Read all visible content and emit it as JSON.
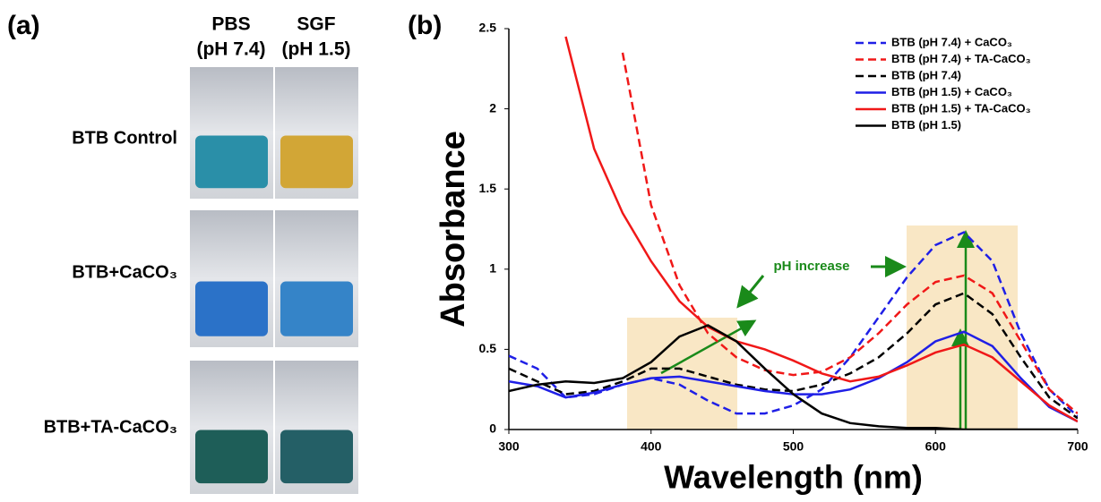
{
  "panel_a": {
    "label": "(a)",
    "columns": [
      {
        "name": "PBS",
        "condition": "(pH 7.4)"
      },
      {
        "name": "SGF",
        "condition": "(pH 1.5)"
      }
    ],
    "rows": [
      "BTB Control",
      "BTB+CaCO₃",
      "BTB+TA-CaCO₃"
    ]
  },
  "chart_data": {
    "type": "line",
    "panel_label": "(b)",
    "x_label": "Wavelength (nm)",
    "y_label": "Absorbance",
    "annotation": "pH increase",
    "x": [
      300,
      320,
      340,
      360,
      380,
      400,
      420,
      440,
      460,
      480,
      500,
      520,
      540,
      560,
      580,
      600,
      620,
      640,
      660,
      680,
      700
    ],
    "xlim": [
      300,
      700
    ],
    "xticks": [
      300,
      400,
      500,
      600,
      700
    ],
    "ylim": [
      0,
      2.5
    ],
    "yticks": [
      0,
      0.5,
      1,
      1.5,
      2,
      2.5
    ],
    "legend": "upper right",
    "series": [
      {
        "name": "BTB (pH 7.4) + CaCO₃",
        "color": "#1f1fe6",
        "dashed": true,
        "values": [
          0.46,
          0.38,
          0.2,
          0.22,
          0.28,
          0.32,
          0.28,
          0.18,
          0.1,
          0.1,
          0.15,
          0.25,
          0.45,
          0.7,
          0.95,
          1.15,
          1.23,
          1.05,
          0.6,
          0.25,
          0.08
        ]
      },
      {
        "name": "BTB (pH 7.4) + TA-CaCO₃",
        "color": "#f01818",
        "dashed": true,
        "values": [
          null,
          null,
          null,
          null,
          2.35,
          1.4,
          0.9,
          0.6,
          0.45,
          0.37,
          0.34,
          0.36,
          0.45,
          0.6,
          0.78,
          0.92,
          0.96,
          0.85,
          0.55,
          0.25,
          0.1
        ]
      },
      {
        "name": "BTB (pH 7.4)",
        "color": "#000000",
        "dashed": true,
        "values": [
          0.38,
          0.3,
          0.22,
          0.24,
          0.3,
          0.38,
          0.38,
          0.33,
          0.28,
          0.25,
          0.24,
          0.28,
          0.35,
          0.45,
          0.6,
          0.78,
          0.85,
          0.72,
          0.45,
          0.2,
          0.07
        ]
      },
      {
        "name": "BTB (pH 1.5) + CaCO₃",
        "color": "#1f1fe6",
        "dashed": false,
        "values": [
          0.3,
          0.27,
          0.2,
          0.23,
          0.28,
          0.32,
          0.33,
          0.3,
          0.27,
          0.24,
          0.22,
          0.22,
          0.25,
          0.32,
          0.42,
          0.55,
          0.61,
          0.52,
          0.32,
          0.14,
          0.05
        ]
      },
      {
        "name": "BTB (pH 1.5) + TA-CaCO₃",
        "color": "#f01818",
        "dashed": false,
        "values": [
          null,
          null,
          2.45,
          1.75,
          1.35,
          1.05,
          0.8,
          0.64,
          0.55,
          0.5,
          0.43,
          0.35,
          0.3,
          0.33,
          0.4,
          0.48,
          0.53,
          0.45,
          0.3,
          0.15,
          0.05
        ]
      },
      {
        "name": "BTB (pH 1.5)",
        "color": "#000000",
        "dashed": false,
        "values": [
          0.24,
          0.28,
          0.3,
          0.29,
          0.32,
          0.42,
          0.58,
          0.65,
          0.55,
          0.38,
          0.22,
          0.1,
          0.04,
          0.02,
          0.01,
          0.01,
          0,
          0,
          0,
          0,
          0
        ]
      }
    ]
  }
}
